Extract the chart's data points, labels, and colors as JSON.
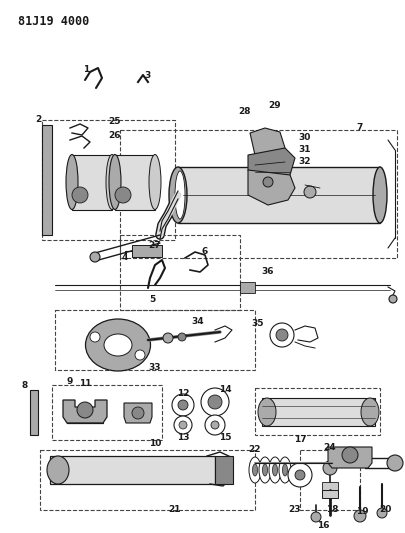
{
  "title": "81J19 4000",
  "bg_color": "#ffffff",
  "line_color": "#1a1a1a",
  "gray1": "#cccccc",
  "gray2": "#aaaaaa",
  "gray3": "#888888",
  "gray4": "#dddddd",
  "dashed_color": "#444444",
  "title_fontsize": 8.5,
  "label_fontsize": 6.5,
  "fig_width": 4.06,
  "fig_height": 5.33,
  "dpi": 100
}
